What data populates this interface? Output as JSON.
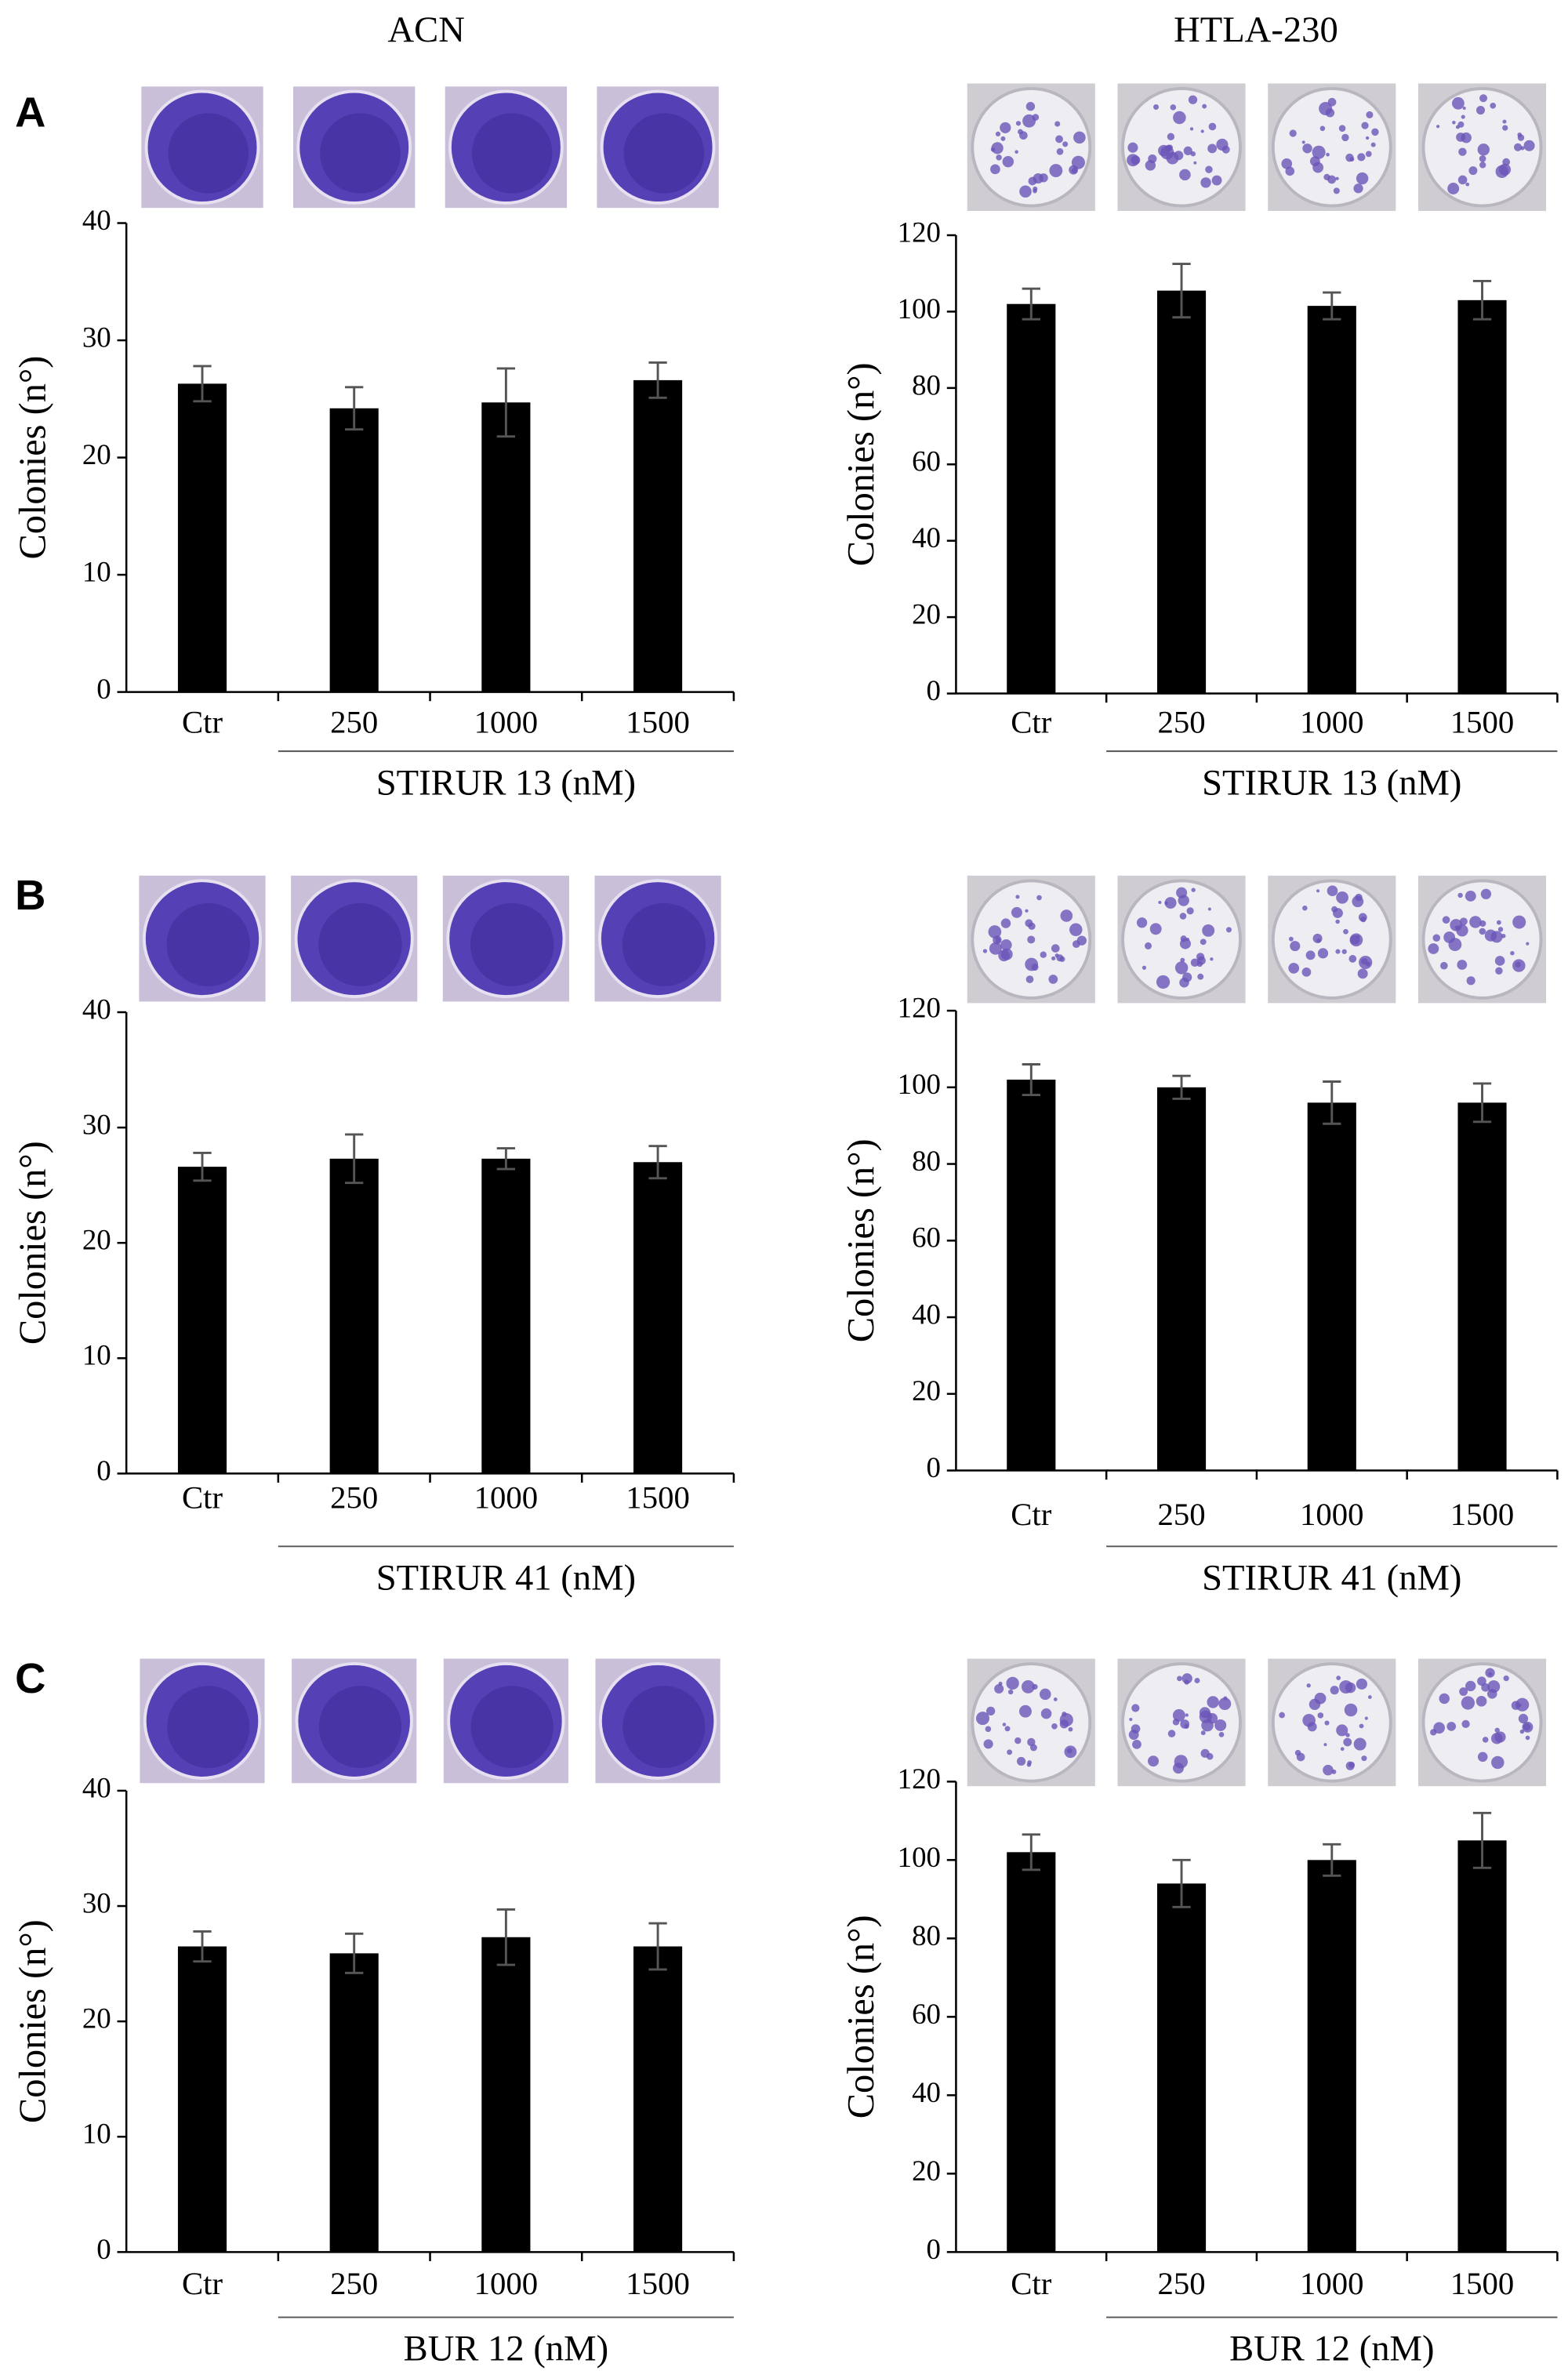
{
  "column_titles": [
    "ACN",
    "HTLA-230"
  ],
  "panel_labels": [
    "A",
    "B",
    "C"
  ],
  "chart_data": [
    {
      "type": "bar",
      "ylabel": "Colonies (n°)",
      "group_label": "STIRUR 13 (nM)",
      "categories": [
        "Ctr",
        "250",
        "1000",
        "1500"
      ],
      "values": [
        26.3,
        24.2,
        24.7,
        26.6
      ],
      "errors": [
        1.5,
        1.8,
        2.9,
        1.5
      ],
      "color": "#000000",
      "ylim": [
        0,
        40
      ],
      "yticks": [
        0,
        10,
        20,
        30,
        40
      ]
    },
    {
      "type": "bar",
      "ylabel": "Colonies (n°)",
      "group_label": "STIRUR 13 (nM)",
      "categories": [
        "Ctr",
        "250",
        "1000",
        "1500"
      ],
      "values": [
        102,
        105.5,
        101.5,
        103
      ],
      "errors": [
        4,
        7,
        3.5,
        5
      ],
      "color": "#000000",
      "ylim": [
        0,
        120
      ],
      "yticks": [
        0,
        20,
        40,
        60,
        80,
        100,
        120
      ]
    },
    {
      "type": "bar",
      "ylabel": "Colonies (n°)",
      "group_label": "STIRUR 41 (nM)",
      "categories": [
        "Ctr",
        "250",
        "1000",
        "1500"
      ],
      "values": [
        26.6,
        27.3,
        27.3,
        27.0
      ],
      "errors": [
        1.2,
        2.1,
        0.9,
        1.4
      ],
      "color": "#000000",
      "ylim": [
        0,
        40
      ],
      "yticks": [
        0,
        10,
        20,
        30,
        40
      ]
    },
    {
      "type": "bar",
      "ylabel": "Colonies (n°)",
      "group_label": "STIRUR 41 (nM)",
      "categories": [
        "Ctr",
        "250",
        "1000",
        "1500"
      ],
      "values": [
        102,
        100,
        96,
        96
      ],
      "errors": [
        4,
        3,
        5.5,
        5
      ],
      "color": "#000000",
      "ylim": [
        0,
        120
      ],
      "yticks": [
        0,
        20,
        40,
        60,
        80,
        100,
        120
      ]
    },
    {
      "type": "bar",
      "ylabel": "Colonies (n°)",
      "group_label": "BUR 12 (nM)",
      "categories": [
        "Ctr",
        "250",
        "1000",
        "1500"
      ],
      "values": [
        26.5,
        25.9,
        27.3,
        26.5
      ],
      "errors": [
        1.3,
        1.7,
        2.4,
        2.0
      ],
      "color": "#000000",
      "ylim": [
        0,
        40
      ],
      "yticks": [
        0,
        10,
        20,
        30,
        40
      ]
    },
    {
      "type": "bar",
      "ylabel": "Colonies (n°)",
      "group_label": "BUR 12 (nM)",
      "categories": [
        "Ctr",
        "250",
        "1000",
        "1500"
      ],
      "values": [
        102,
        94,
        100,
        105
      ],
      "errors": [
        4.5,
        6,
        4,
        7
      ],
      "color": "#000000",
      "ylim": [
        0,
        120
      ],
      "yticks": [
        0,
        20,
        40,
        60,
        80,
        100,
        120
      ]
    }
  ]
}
